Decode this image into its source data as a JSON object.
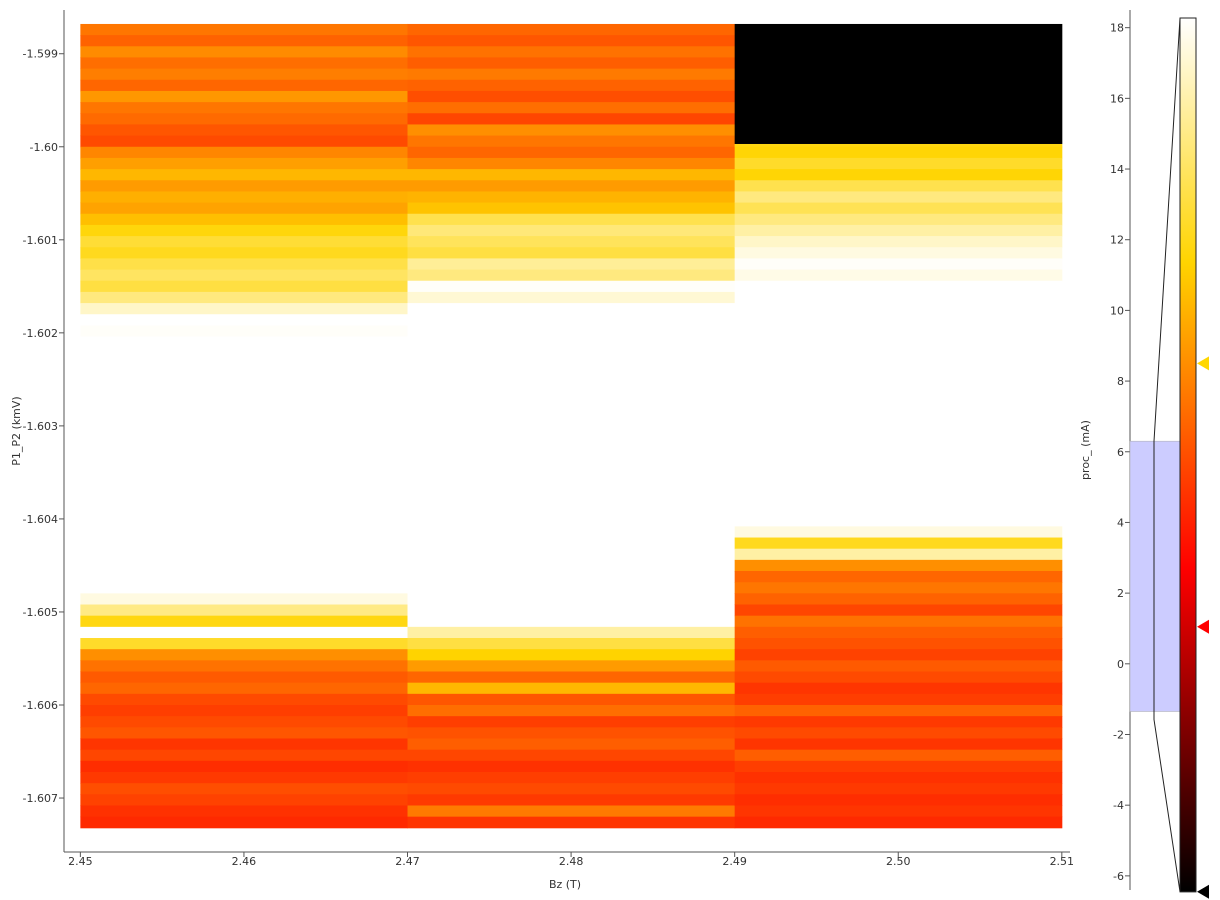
{
  "chart_data": {
    "type": "heatmap",
    "colormap": "hot",
    "xlabel": "Bz (T)",
    "ylabel": "P1_P2 (kmV)",
    "xlim": [
      2.449,
      2.5105
    ],
    "ylim": [
      -1.60758,
      -1.59853
    ],
    "x_ticks": [
      2.45,
      2.46,
      2.47,
      2.48,
      2.49,
      2.5,
      2.51
    ],
    "x_tick_labels": [
      "2.45",
      "2.46",
      "2.47",
      "2.48",
      "2.49",
      "2.50",
      "2.51"
    ],
    "y_ticks": [
      -1.599,
      -1.6,
      -1.601,
      -1.602,
      -1.603,
      -1.604,
      -1.605,
      -1.606,
      -1.607
    ],
    "y_tick_labels": [
      "-1.599",
      "-1.60",
      "-1.601",
      "-1.602",
      "-1.603",
      "-1.604",
      "-1.605",
      "-1.606",
      "-1.607"
    ],
    "x_columns": [
      {
        "x_start": 2.45,
        "x_end": 2.47
      },
      {
        "x_start": 2.47,
        "x_end": 2.49
      },
      {
        "x_start": 2.49,
        "x_end": 2.51
      }
    ],
    "y_range": [
      -1.60732,
      -1.59868
    ],
    "rows": 72,
    "columns_y_start": [
      -1.59868,
      -1.59868,
      -1.59997
    ],
    "color_levels": [
      [
        2.0,
        1.5,
        2.5,
        1.8,
        2.2,
        1.6,
        2.8,
        2.0,
        1.7,
        1.2,
        0.9,
        2.4,
        3.0,
        3.6,
        2.9,
        3.4,
        3.1,
        3.8,
        4.5,
        5.2,
        4.8,
        5.5,
        5.9,
        5.4,
        6.4,
        7.6,
        8.8,
        8.4,
        9.8,
        10.5,
        11.0,
        10.2,
        11.2,
        10.8,
        11.6,
        12.0,
        11.3,
        12.6,
        13.4,
        12.2,
        11.5,
        11.9,
        10.6,
        11.0,
        10.1,
        10.4,
        9.9,
        10.6,
        9.8,
        10.2,
        9.2,
        8.0,
        6.5,
        4.6,
        8.6,
        5.0,
        2.6,
        1.9,
        1.3,
        1.6,
        0.9,
        0.6,
        0.9,
        1.2,
        0.4,
        0.8,
        0.2,
        0.5,
        1.0,
        0.7,
        0.3,
        0.1
      ],
      [
        1.6,
        1.2,
        1.9,
        1.4,
        2.1,
        1.5,
        1.0,
        1.8,
        0.8,
        2.6,
        2.0,
        1.6,
        2.4,
        3.6,
        2.9,
        3.5,
        3.9,
        5.6,
        6.3,
        5.8,
        5.4,
        6.8,
        6.4,
        8.4,
        7.8,
        9.4,
        9.0,
        9.8,
        9.2,
        10.4,
        9.6,
        10.6,
        9.9,
        11.0,
        10.6,
        11.6,
        11.0,
        12.2,
        11.9,
        11.8,
        12.0,
        11.2,
        10.8,
        11.4,
        10.5,
        11.0,
        10.0,
        10.4,
        9.8,
        9.2,
        10.3,
        9.6,
        8.6,
        9.6,
        7.0,
        5.4,
        4.3,
        2.9,
        1.6,
        3.6,
        1.2,
        1.8,
        0.6,
        1.1,
        1.4,
        0.8,
        0.3,
        0.6,
        0.9,
        0.5,
        2.1,
        0.4
      ],
      [
        1.5,
        2.2,
        1.8,
        2.6,
        2.2,
        3.0,
        3.4,
        2.6,
        3.2,
        2.8,
        4.6,
        4.4,
        5.0,
        4.4,
        5.6,
        6.4,
        5.7,
        6.4,
        7.0,
        7.6,
        8.0,
        8.4,
        8.1,
        8.8,
        9.5,
        9.0,
        9.8,
        10.1,
        9.7,
        10.5,
        10.3,
        10.8,
        11.2,
        11.0,
        11.6,
        11.2,
        12.0,
        10.8,
        11.6,
        11.1,
        10.3,
        11.0,
        10.5,
        9.8,
        9.0,
        8.0,
        4.8,
        7.0,
        2.6,
        1.6,
        2.0,
        1.5,
        0.8,
        1.9,
        1.4,
        1.1,
        0.7,
        1.3,
        0.9,
        0.4,
        0.6,
        1.5,
        0.5,
        0.9,
        0.4,
        1.4,
        0.6,
        0.3,
        0.5,
        0.2,
        0.4,
        0.1
      ]
    ],
    "colorbar": {
      "label": "proc_ (mA)",
      "ticks": [
        18,
        16,
        14,
        12,
        10,
        8,
        6,
        4,
        2,
        0,
        -2,
        -4,
        -6
      ],
      "tick_labels": [
        "18",
        "16",
        "14",
        "12",
        "10",
        "8",
        "6",
        "4",
        "2",
        "0",
        "-2",
        "-4",
        "-6"
      ],
      "range": [
        -6.4,
        18.5
      ],
      "level_handles": [
        {
          "value": 8.5,
          "color": "#ffd700"
        },
        {
          "value": 1.05,
          "color": "#ff0000"
        },
        {
          "value": -6.45,
          "color": "#000000"
        }
      ],
      "histogram_region": [
        -1.35,
        6.3
      ],
      "histogram_color": "#ccccff"
    },
    "grid": false
  }
}
